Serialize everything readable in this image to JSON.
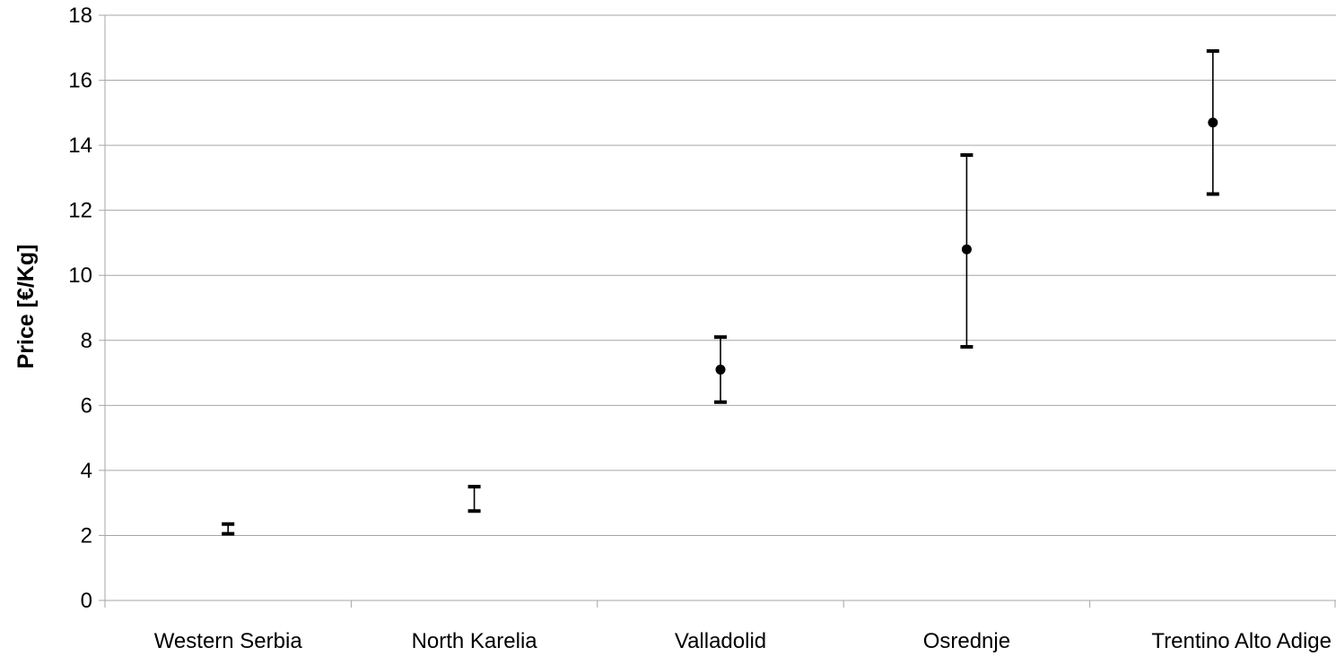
{
  "chart_data": {
    "type": "scatter",
    "title": "",
    "xlabel": "",
    "ylabel": "Price [€/Kg]",
    "ylim": [
      0,
      18
    ],
    "yticks": [
      0,
      2,
      4,
      6,
      8,
      10,
      12,
      14,
      16,
      18
    ],
    "grid": true,
    "categories": [
      "Western Serbia",
      "North Karelia",
      "Valladolid",
      "Osrednje",
      "Trentino Alto Adige"
    ],
    "series": [
      {
        "marker": "circle",
        "error_bars": true,
        "points": [
          {
            "category": "Western Serbia",
            "low": 2.05,
            "high": 2.35,
            "mean": null
          },
          {
            "category": "North Karelia",
            "low": 2.75,
            "high": 3.5,
            "mean": null
          },
          {
            "category": "Valladolid",
            "low": 6.1,
            "high": 8.1,
            "mean": 7.1
          },
          {
            "category": "Osrednje",
            "low": 7.8,
            "high": 13.7,
            "mean": 10.8
          },
          {
            "category": "Trentino Alto Adige",
            "low": 12.5,
            "high": 16.9,
            "mean": 14.7
          }
        ]
      }
    ],
    "colors": {
      "marker": "#000000",
      "grid": "#a6a6a6"
    }
  }
}
